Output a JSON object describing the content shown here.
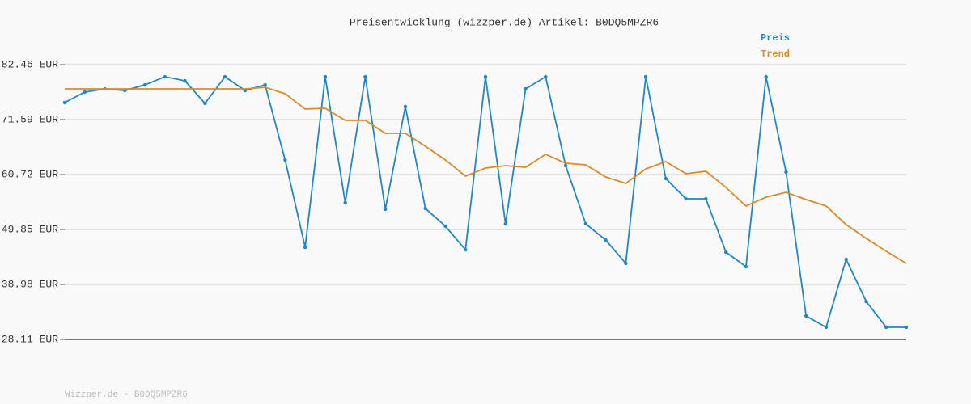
{
  "chart_data": {
    "type": "line",
    "title": "Preisentwicklung (wizzper.de) Artikel: B0DQ5MPZR6",
    "footer": "Wizzper.de - B0DQ5MPZR6",
    "categories": [
      null,
      null,
      null,
      null,
      null,
      null,
      null,
      null,
      null,
      null,
      null,
      null,
      null,
      null,
      null,
      null,
      null,
      null,
      null,
      null,
      null,
      null,
      null,
      null,
      null,
      null,
      null,
      null,
      null,
      null,
      null,
      null,
      null,
      null,
      null,
      null,
      null,
      null,
      null,
      null,
      null,
      null,
      null
    ],
    "series": [
      {
        "name": "Preis",
        "color": "#1f87c4",
        "markers": true,
        "values": [
          74.95,
          77.03,
          77.66,
          77.34,
          78.46,
          80.06,
          79.26,
          74.79,
          80.06,
          77.34,
          78.46,
          63.6,
          46.33,
          80.06,
          55.13,
          80.06,
          53.85,
          74.15,
          54.01,
          50.49,
          45.85,
          80.06,
          50.97,
          77.66,
          80.06,
          62.48,
          50.97,
          47.77,
          43.14,
          80.06,
          59.92,
          55.92,
          55.92,
          45.37,
          42.5,
          80.06,
          61.2,
          32.75,
          30.51,
          43.94,
          35.62,
          30.51,
          30.51
        ]
      },
      {
        "name": "Trend",
        "color": "#dc8a2a",
        "markers": false,
        "values": [
          77.66,
          77.66,
          77.66,
          77.66,
          77.66,
          77.66,
          77.66,
          77.66,
          77.66,
          77.66,
          77.98,
          76.71,
          73.67,
          73.83,
          71.43,
          71.43,
          68.87,
          68.87,
          66.32,
          63.6,
          60.4,
          62.0,
          62.48,
          62.16,
          64.72,
          62.96,
          62.64,
          60.24,
          58.96,
          61.84,
          63.28,
          60.88,
          61.36,
          58.16,
          54.49,
          56.24,
          57.2,
          55.77,
          54.49,
          50.81,
          48.09,
          45.53,
          43.14
        ]
      }
    ],
    "ylim": [
      28.11,
      82.46
    ],
    "yticks": [
      {
        "value": 28.11,
        "label": "28.11 EUR"
      },
      {
        "value": 38.98,
        "label": "38.98 EUR"
      },
      {
        "value": 49.85,
        "label": "49.85 EUR"
      },
      {
        "value": 60.72,
        "label": "60.72 EUR"
      },
      {
        "value": 71.59,
        "label": "71.59 EUR"
      },
      {
        "value": 82.46,
        "label": "82.46 EUR"
      }
    ],
    "grid": true
  }
}
